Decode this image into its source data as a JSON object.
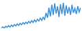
{
  "chart_data": {
    "type": "line",
    "x": [
      1,
      2,
      3,
      4,
      5,
      6,
      7,
      8,
      9,
      10,
      11,
      12,
      13,
      14,
      15,
      16,
      17,
      18,
      19,
      20,
      21,
      22,
      23,
      24,
      25,
      26,
      27,
      28,
      29,
      30,
      31,
      32,
      33,
      34,
      35,
      36,
      37,
      38,
      39,
      40,
      41,
      42,
      43,
      44,
      45,
      46,
      47,
      48,
      49,
      50,
      51,
      52,
      53,
      54,
      55,
      56
    ],
    "values": [
      10,
      14,
      9,
      16,
      12,
      18,
      13,
      20,
      15,
      22,
      17,
      24,
      19,
      26,
      21,
      28,
      23,
      30,
      25,
      33,
      27,
      35,
      29,
      38,
      31,
      40,
      34,
      44,
      36,
      47,
      39,
      62,
      45,
      80,
      50,
      90,
      55,
      95,
      60,
      85,
      48,
      92,
      58,
      97,
      52,
      88,
      60,
      82,
      55,
      90,
      62,
      78,
      58,
      85,
      65,
      80
    ],
    "color": "#3a8fd8",
    "xlim": [
      1,
      56
    ],
    "ylim": [
      9,
      97
    ],
    "tick_labels": false,
    "grid": false
  }
}
